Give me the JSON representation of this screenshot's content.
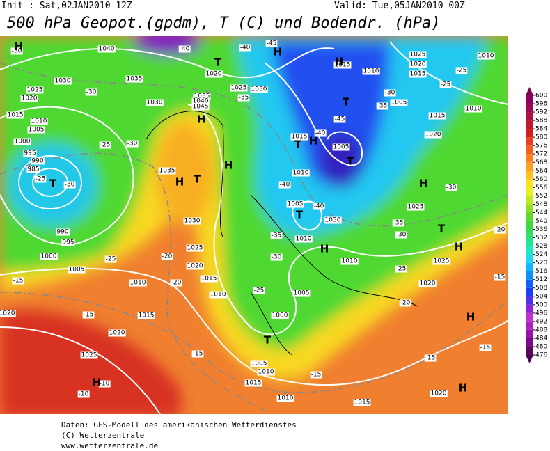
{
  "header": {
    "init": "Init : Sat,02JAN2010 12Z",
    "valid": "Valid: Tue,05JAN2010 00Z",
    "title": "500 hPa Geopot.(gpdm), T (C) und Bodendr. (hPa)"
  },
  "colorbar": {
    "levels": [
      476,
      480,
      484,
      488,
      492,
      496,
      500,
      504,
      508,
      512,
      516,
      520,
      524,
      528,
      532,
      536,
      540,
      544,
      548,
      552,
      556,
      560,
      564,
      568,
      572,
      576,
      580,
      584,
      588,
      592,
      596,
      600
    ],
    "colors": [
      "#5a0a5a",
      "#7a0a8a",
      "#9a10aa",
      "#b020c0",
      "#c030d0",
      "#9020e0",
      "#5030e8",
      "#2040f0",
      "#1060f8",
      "#1090ff",
      "#10b8ff",
      "#20d8f0",
      "#20e8c0",
      "#20e890",
      "#30e060",
      "#40d840",
      "#60d830",
      "#90e020",
      "#c0e820",
      "#e8f020",
      "#ffe020",
      "#ffc020",
      "#ffa020",
      "#ff8020",
      "#f86020",
      "#e84020",
      "#d02020",
      "#c01830",
      "#b01040",
      "#a00850",
      "#900060"
    ],
    "below_color": "#4a0050",
    "above_color": "#800050"
  },
  "isobar_labels": [
    "1040",
    "1020",
    "1025",
    "1030",
    "1035",
    "1030",
    "1025",
    "1020",
    "1015",
    "1010",
    "1005",
    "1000",
    "995",
    "990",
    "985",
    "1030",
    "1035",
    "1040",
    "1045",
    "1035",
    "1030",
    "1025",
    "1020",
    "1015",
    "1010",
    "1010",
    "1005",
    "1000",
    "995",
    "990",
    "1015",
    "1020",
    "1025",
    "1005",
    "1000",
    "1005",
    "1010",
    "1015",
    "1010",
    "1015",
    "1020",
    "1015",
    "1010",
    "1005",
    "1005",
    "1010",
    "1010",
    "1015",
    "1010",
    "1025",
    "1020",
    "1015",
    "1010",
    "1005",
    "1010",
    "1015",
    "1020",
    "1025",
    "1030",
    "1025",
    "1020",
    "1020"
  ],
  "temperature_labels": [
    "-30",
    "-40",
    "-45",
    "-40",
    "-30",
    "-35",
    "-30",
    "-35",
    "-25",
    "-25",
    "-25",
    "-30",
    "-30",
    "-25",
    "-40",
    "-40",
    "-45",
    "-40",
    "-35",
    "-30",
    "-35",
    "-30",
    "-30",
    "-25",
    "-20",
    "-15",
    "-20",
    "-25",
    "-25",
    "-20",
    "-15",
    "-15",
    "-15",
    "-15",
    "-15",
    "-10",
    "-10",
    "-20",
    "-15"
  ],
  "centers": [
    "H",
    "H",
    "H",
    "T",
    "T",
    "H",
    "H",
    "H",
    "T",
    "T",
    "H",
    "T",
    "T",
    "T",
    "H",
    "H",
    "T",
    "H",
    "T",
    "H",
    "H",
    "H"
  ],
  "footer": [
    "Daten: GFS-Modell des amerikanischen Wetterdienstes",
    "(C) Wetterzentrale",
    "www.wetterzentrale.de"
  ]
}
